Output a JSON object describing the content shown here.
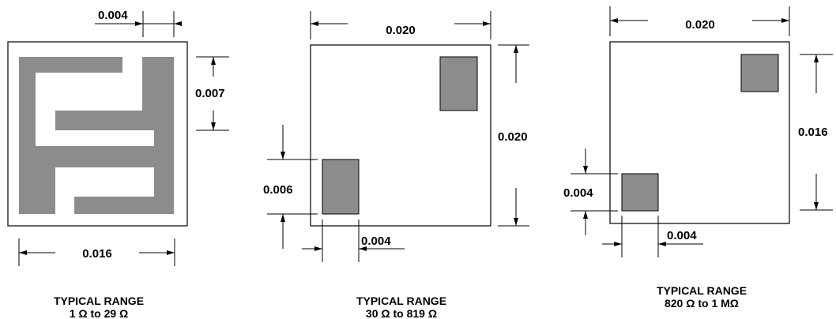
{
  "colors": {
    "pad": "#8c8c8c",
    "line": "#000000",
    "background": "#ffffff"
  },
  "chips": [
    {
      "id": "chip-1",
      "dims": {
        "top": "0.004",
        "right": "0.007",
        "bottom": "0.016"
      },
      "caption": {
        "line1": "TYPICAL RANGE",
        "line2": "1 Ω to 29 Ω"
      }
    },
    {
      "id": "chip-2",
      "dims": {
        "top": "0.020",
        "right": "0.020",
        "left": "0.006",
        "bottom": "0.004"
      },
      "caption": {
        "line1": "TYPICAL RANGE",
        "line2": "30 Ω to 819 Ω"
      }
    },
    {
      "id": "chip-3",
      "dims": {
        "top": "0.020",
        "right": "0.016",
        "left": "0.004",
        "bottom": "0.004"
      },
      "caption": {
        "line1": "TYPICAL RANGE",
        "line2": "820 Ω to 1 MΩ"
      }
    }
  ]
}
